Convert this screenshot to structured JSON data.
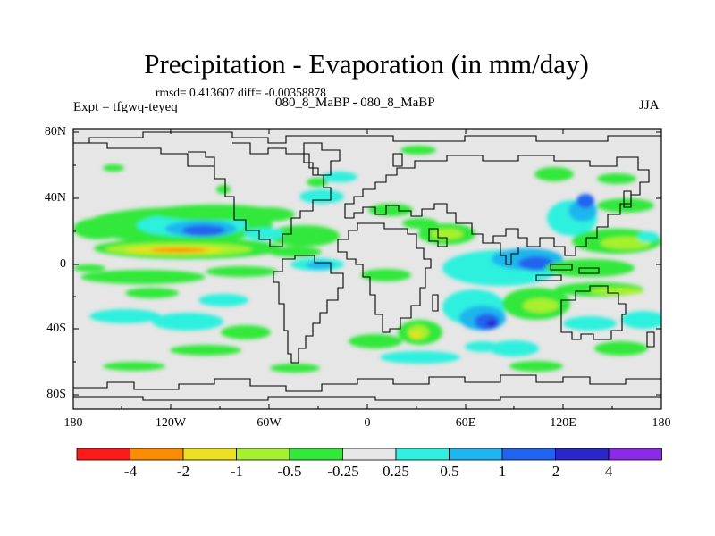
{
  "plot": {
    "title": "Precipitation - Evaporation (in mm/day)",
    "stats": "rmsd= 0.413607 diff= -0.00358878",
    "experiment": "Expt = tfgwq-teyeq",
    "subtitle": "080_8_MaBP - 080_8_MaBP",
    "season": "JJA"
  },
  "axes": {
    "lat_labels": [
      "80N",
      "40N",
      "0",
      "40S",
      "80S"
    ],
    "lon_labels": [
      "180",
      "120W",
      "60W",
      "0",
      "60E",
      "120E",
      "180"
    ]
  },
  "colorbar": {
    "colors": [
      "#ff1a1a",
      "#ff8c00",
      "#ebe01e",
      "#a7f02f",
      "#33e83a",
      "#e6e6e6",
      "#2ff0de",
      "#1fb6ef",
      "#2063ef",
      "#2a27c9",
      "#8a2be8"
    ],
    "labels": [
      "-4",
      "-2",
      "-1",
      "-0.5",
      "-0.25",
      "0.25",
      "0.5",
      "1",
      "2",
      "4"
    ]
  }
}
